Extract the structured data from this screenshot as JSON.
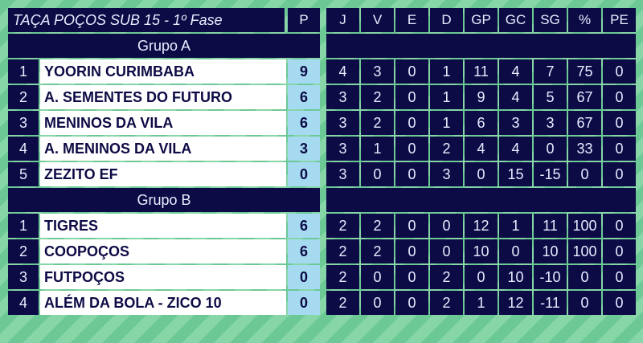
{
  "table": {
    "title": "TAÇA POÇOS SUB 15 - 1º Fase",
    "headers": [
      "P",
      "J",
      "V",
      "E",
      "D",
      "GP",
      "GC",
      "SG",
      "%",
      "PE"
    ],
    "groups": [
      {
        "name": "Grupo A",
        "rows": [
          {
            "pos": "1",
            "team": "YOORIN CURIMBABA",
            "p": "9",
            "stats": [
              "4",
              "3",
              "0",
              "1",
              "11",
              "4",
              "7",
              "75",
              "0"
            ]
          },
          {
            "pos": "2",
            "team": "A. SEMENTES DO FUTURO",
            "p": "6",
            "stats": [
              "3",
              "2",
              "0",
              "1",
              "9",
              "4",
              "5",
              "67",
              "0"
            ]
          },
          {
            "pos": "3",
            "team": "MENINOS DA VILA",
            "p": "6",
            "stats": [
              "3",
              "2",
              "0",
              "1",
              "6",
              "3",
              "3",
              "67",
              "0"
            ]
          },
          {
            "pos": "4",
            "team": "A. MENINOS DA VILA",
            "p": "3",
            "stats": [
              "3",
              "1",
              "0",
              "2",
              "4",
              "4",
              "0",
              "33",
              "0"
            ]
          },
          {
            "pos": "5",
            "team": "ZEZITO EF",
            "p": "0",
            "stats": [
              "3",
              "0",
              "0",
              "3",
              "0",
              "15",
              "-15",
              "0",
              "0"
            ]
          }
        ]
      },
      {
        "name": "Grupo B",
        "rows": [
          {
            "pos": "1",
            "team": "TIGRES",
            "p": "6",
            "stats": [
              "2",
              "2",
              "0",
              "0",
              "12",
              "1",
              "11",
              "100",
              "0"
            ]
          },
          {
            "pos": "2",
            "team": "COOPOÇOS",
            "p": "6",
            "stats": [
              "2",
              "2",
              "0",
              "0",
              "10",
              "0",
              "10",
              "100",
              "0"
            ]
          },
          {
            "pos": "3",
            "team": "FUTPOÇOS",
            "p": "0",
            "stats": [
              "2",
              "0",
              "0",
              "2",
              "0",
              "10",
              "-10",
              "0",
              "0"
            ]
          },
          {
            "pos": "4",
            "team": "ALÉM DA BOLA - ZICO 10",
            "p": "0",
            "stats": [
              "2",
              "0",
              "0",
              "2",
              "1",
              "12",
              "-11",
              "0",
              "0"
            ]
          }
        ]
      }
    ],
    "colors": {
      "dark": "#0d0b45",
      "name_bg": "#ffffff",
      "points_bg": "#a6daf0",
      "stripe_a": "#6cc996",
      "stripe_b": "#87d6a8"
    }
  }
}
